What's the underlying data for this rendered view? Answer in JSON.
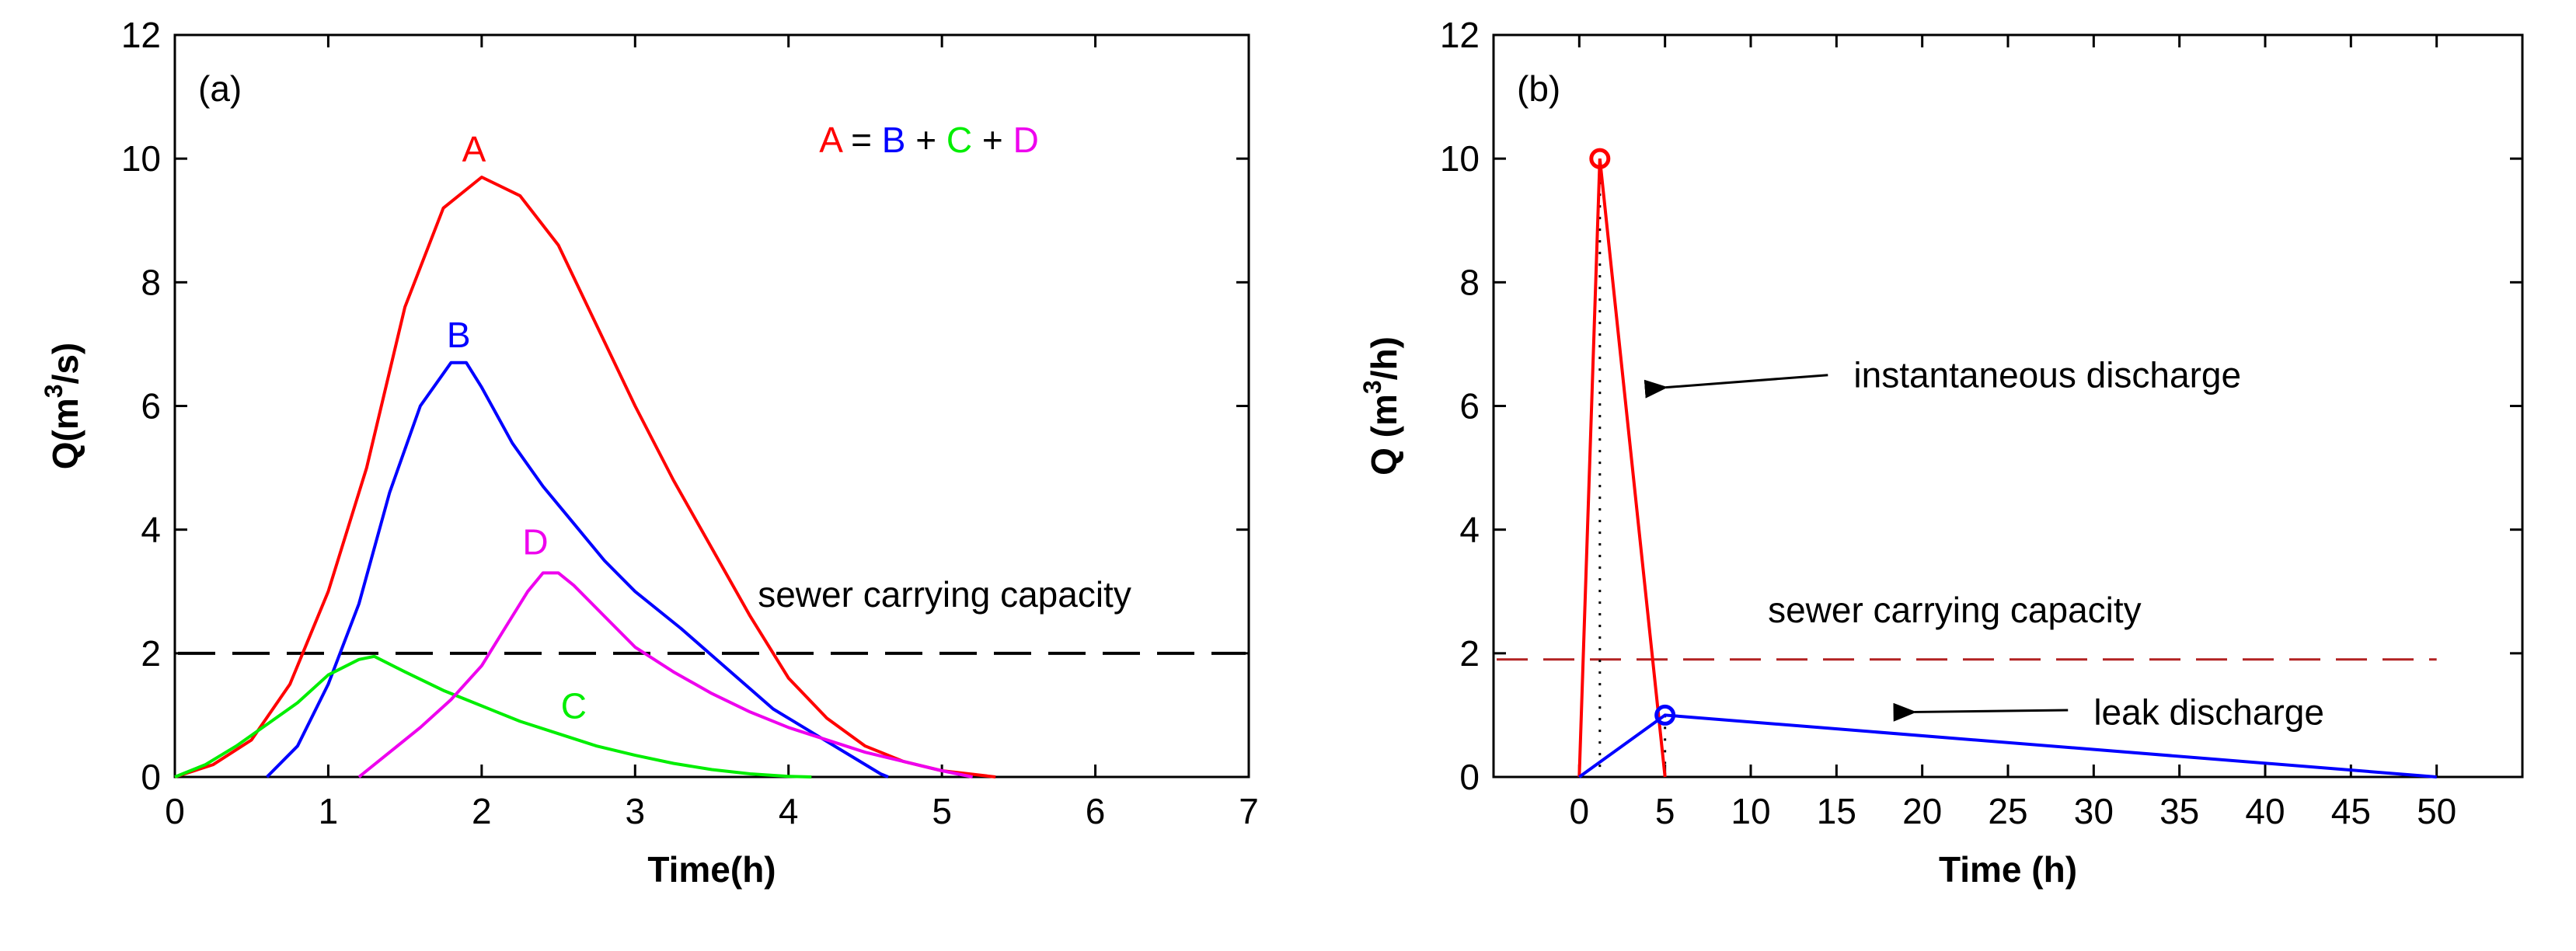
{
  "chart_data": [
    {
      "type": "line",
      "panel_label": "(a)",
      "xlabel": "Time(h)",
      "ylabel_main": "Q(m",
      "ylabel_sup": "3",
      "ylabel_tail": "/s)",
      "xlim": [
        0,
        7
      ],
      "ylim": [
        0,
        12
      ],
      "xticks": [
        0,
        1,
        2,
        3,
        4,
        5,
        6,
        7
      ],
      "yticks": [
        0,
        2,
        4,
        6,
        8,
        10,
        12
      ],
      "grid": false,
      "equation": [
        {
          "text": "A",
          "color": "#ff0000"
        },
        {
          "text": " = ",
          "color": "#000000"
        },
        {
          "text": "B",
          "color": "#0000ff"
        },
        {
          "text": " + ",
          "color": "#000000"
        },
        {
          "text": "C",
          "color": "#00ee00"
        },
        {
          "text": " + ",
          "color": "#000000"
        },
        {
          "text": "D",
          "color": "#ee00ee"
        }
      ],
      "capacity": {
        "label": "sewer carrying capacity",
        "value": 2.0,
        "color": "#000000",
        "style": "dashed"
      },
      "series": [
        {
          "name": "A",
          "color": "#ff0000",
          "label_at": [
            1.95,
            9.95
          ],
          "points": [
            [
              0,
              0
            ],
            [
              0.25,
              0.2
            ],
            [
              0.5,
              0.6
            ],
            [
              0.75,
              1.5
            ],
            [
              1.0,
              3.0
            ],
            [
              1.25,
              5.0
            ],
            [
              1.5,
              7.6
            ],
            [
              1.75,
              9.2
            ],
            [
              2.0,
              9.7
            ],
            [
              2.25,
              9.4
            ],
            [
              2.5,
              8.6
            ],
            [
              2.75,
              7.3
            ],
            [
              3.0,
              6.0
            ],
            [
              3.25,
              4.8
            ],
            [
              3.5,
              3.7
            ],
            [
              3.75,
              2.6
            ],
            [
              4.0,
              1.6
            ],
            [
              4.25,
              0.95
            ],
            [
              4.5,
              0.5
            ],
            [
              4.75,
              0.25
            ],
            [
              5.0,
              0.1
            ],
            [
              5.35,
              0
            ]
          ]
        },
        {
          "name": "B",
          "color": "#0000ff",
          "label_at": [
            1.85,
            6.95
          ],
          "points": [
            [
              0.6,
              0
            ],
            [
              0.8,
              0.5
            ],
            [
              1.0,
              1.5
            ],
            [
              1.2,
              2.8
            ],
            [
              1.4,
              4.6
            ],
            [
              1.6,
              6.0
            ],
            [
              1.8,
              6.7
            ],
            [
              1.9,
              6.7
            ],
            [
              2.0,
              6.3
            ],
            [
              2.2,
              5.4
            ],
            [
              2.4,
              4.7
            ],
            [
              2.6,
              4.1
            ],
            [
              2.8,
              3.5
            ],
            [
              3.0,
              3.0
            ],
            [
              3.3,
              2.4
            ],
            [
              3.6,
              1.75
            ],
            [
              3.9,
              1.1
            ],
            [
              4.2,
              0.65
            ],
            [
              4.4,
              0.35
            ],
            [
              4.6,
              0.05
            ],
            [
              4.65,
              0
            ]
          ]
        },
        {
          "name": "C",
          "color": "#00ee00",
          "label_at": [
            2.6,
            0.95
          ],
          "points": [
            [
              0,
              0
            ],
            [
              0.2,
              0.2
            ],
            [
              0.4,
              0.5
            ],
            [
              0.6,
              0.85
            ],
            [
              0.8,
              1.2
            ],
            [
              1.0,
              1.65
            ],
            [
              1.2,
              1.9
            ],
            [
              1.3,
              1.95
            ],
            [
              1.5,
              1.7
            ],
            [
              1.75,
              1.4
            ],
            [
              2.0,
              1.15
            ],
            [
              2.25,
              0.9
            ],
            [
              2.5,
              0.7
            ],
            [
              2.75,
              0.5
            ],
            [
              3.0,
              0.35
            ],
            [
              3.25,
              0.22
            ],
            [
              3.5,
              0.12
            ],
            [
              3.75,
              0.05
            ],
            [
              4.0,
              0.01
            ],
            [
              4.15,
              0
            ]
          ]
        },
        {
          "name": "D",
          "color": "#ee00ee",
          "label_at": [
            2.35,
            3.6
          ],
          "points": [
            [
              1.2,
              0
            ],
            [
              1.4,
              0.4
            ],
            [
              1.6,
              0.8
            ],
            [
              1.8,
              1.25
            ],
            [
              2.0,
              1.8
            ],
            [
              2.15,
              2.4
            ],
            [
              2.3,
              3.0
            ],
            [
              2.4,
              3.3
            ],
            [
              2.5,
              3.3
            ],
            [
              2.6,
              3.1
            ],
            [
              2.8,
              2.6
            ],
            [
              3.0,
              2.1
            ],
            [
              3.25,
              1.7
            ],
            [
              3.5,
              1.35
            ],
            [
              3.75,
              1.05
            ],
            [
              4.0,
              0.8
            ],
            [
              4.25,
              0.6
            ],
            [
              4.5,
              0.4
            ],
            [
              4.75,
              0.25
            ],
            [
              5.0,
              0.1
            ],
            [
              5.2,
              0
            ]
          ]
        }
      ]
    },
    {
      "type": "line",
      "panel_label": "(b)",
      "xlabel": "Time (h)",
      "ylabel_main": "Q (m",
      "ylabel_sup": "3",
      "ylabel_tail": "/h)",
      "xlim": [
        -5,
        55
      ],
      "ylim": [
        0,
        12
      ],
      "xticks": [
        0,
        5,
        10,
        15,
        20,
        25,
        30,
        35,
        40,
        45,
        50
      ],
      "yticks": [
        0,
        2,
        4,
        6,
        8,
        10,
        12
      ],
      "grid": false,
      "capacity": {
        "label": "sewer carrying capacity",
        "value": 1.9,
        "color": "#b22222",
        "style": "dashed"
      },
      "series": [
        {
          "name": "instantaneous discharge",
          "color": "#ff0000",
          "points": [
            [
              0,
              0
            ],
            [
              1.2,
              10
            ],
            [
              5,
              0
            ]
          ],
          "peak": [
            1.2,
            10
          ]
        },
        {
          "name": "leak discharge",
          "color": "#0000ff",
          "points": [
            [
              0,
              0
            ],
            [
              5,
              1
            ],
            [
              50,
              0
            ]
          ],
          "peak": [
            5,
            1
          ]
        }
      ],
      "annotations": [
        {
          "text": "instantaneous discharge",
          "arrow_to": [
            4.5,
            6.3
          ]
        },
        {
          "text": "leak discharge",
          "arrow_to": [
            19,
            1.05
          ]
        }
      ]
    }
  ]
}
